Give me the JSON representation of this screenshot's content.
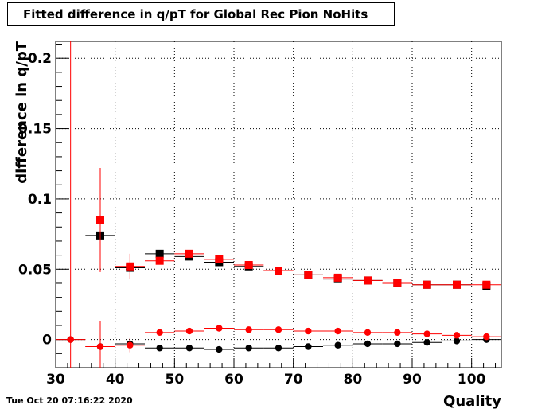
{
  "chart_data": {
    "type": "scatter",
    "title": "Fitted difference in q/pT for Global Rec Pion NoHits",
    "xlabel": "Quality",
    "ylabel": "difference in q/pT",
    "xlim": [
      30,
      105
    ],
    "ylim": [
      -0.02,
      0.212
    ],
    "x_ticks": [
      30,
      40,
      50,
      60,
      70,
      80,
      90,
      100
    ],
    "y_ticks": [
      0,
      0.05,
      0.1,
      0.15,
      0.2
    ],
    "x_tick_labels": [
      "30",
      "40",
      "50",
      "60",
      "70",
      "80",
      "90",
      "100"
    ],
    "y_tick_labels": [
      "0",
      "0.05",
      "0.1",
      "0.15",
      "0.2"
    ],
    "grid": true,
    "x_bins": [
      32.5,
      37.5,
      42.5,
      47.5,
      52.5,
      57.5,
      62.5,
      67.5,
      72.5,
      77.5,
      82.5,
      87.5,
      92.5,
      97.5,
      102.5
    ],
    "bin_half_width": 2.5,
    "series": [
      {
        "marker": "square",
        "color": "#000000",
        "x": [
          37.5,
          42.5,
          47.5,
          52.5,
          57.5,
          62.5,
          67.5,
          72.5,
          77.5,
          82.5,
          87.5,
          92.5,
          97.5,
          102.5
        ],
        "values": [
          0.074,
          0.051,
          0.061,
          0.059,
          0.055,
          0.052,
          0.049,
          0.046,
          0.043,
          0.042,
          0.04,
          0.039,
          0.039,
          0.038
        ],
        "errors": [
          0,
          0.003,
          0,
          0,
          0,
          0,
          0,
          0,
          0,
          0,
          0,
          0,
          0,
          0
        ]
      },
      {
        "marker": "square",
        "color": "#ff0000",
        "x": [
          37.5,
          42.5,
          47.5,
          52.5,
          57.5,
          62.5,
          67.5,
          72.5,
          77.5,
          82.5,
          87.5,
          92.5,
          97.5,
          102.5
        ],
        "values": [
          0.085,
          0.052,
          0.056,
          0.061,
          0.057,
          0.053,
          0.049,
          0.046,
          0.044,
          0.042,
          0.04,
          0.039,
          0.039,
          0.039
        ],
        "errors": [
          0.037,
          0.009,
          0,
          0,
          0,
          0,
          0,
          0,
          0,
          0,
          0,
          0,
          0,
          0
        ]
      },
      {
        "marker": "circle",
        "color": "#000000",
        "x": [
          32.5,
          37.5,
          42.5,
          47.5,
          52.5,
          57.5,
          62.5,
          67.5,
          72.5,
          77.5,
          82.5,
          87.5,
          92.5,
          97.5,
          102.5
        ],
        "values": [
          0.0,
          -0.005,
          -0.003,
          -0.006,
          -0.006,
          -0.007,
          -0.006,
          -0.006,
          -0.005,
          -0.004,
          -0.003,
          -0.003,
          -0.002,
          -0.001,
          0.0
        ],
        "errors": [
          0,
          0.01,
          0.002,
          0,
          0,
          0,
          0,
          0,
          0,
          0,
          0,
          0,
          0,
          0,
          0
        ]
      },
      {
        "marker": "circle",
        "color": "#ff0000",
        "x": [
          32.5,
          37.5,
          42.5,
          47.5,
          52.5,
          57.5,
          62.5,
          67.5,
          72.5,
          77.5,
          82.5,
          87.5,
          92.5,
          97.5,
          102.5
        ],
        "values": [
          0.0,
          -0.005,
          -0.004,
          0.005,
          0.006,
          0.008,
          0.007,
          0.007,
          0.006,
          0.006,
          0.005,
          0.005,
          0.004,
          0.003,
          0.002
        ],
        "errors": [
          0.212,
          0.018,
          0.005,
          0,
          0,
          0,
          0,
          0,
          0,
          0,
          0,
          0,
          0,
          0,
          0
        ]
      }
    ]
  },
  "footer": {
    "timestamp": "Tue Oct 20 07:16:22 2020"
  }
}
